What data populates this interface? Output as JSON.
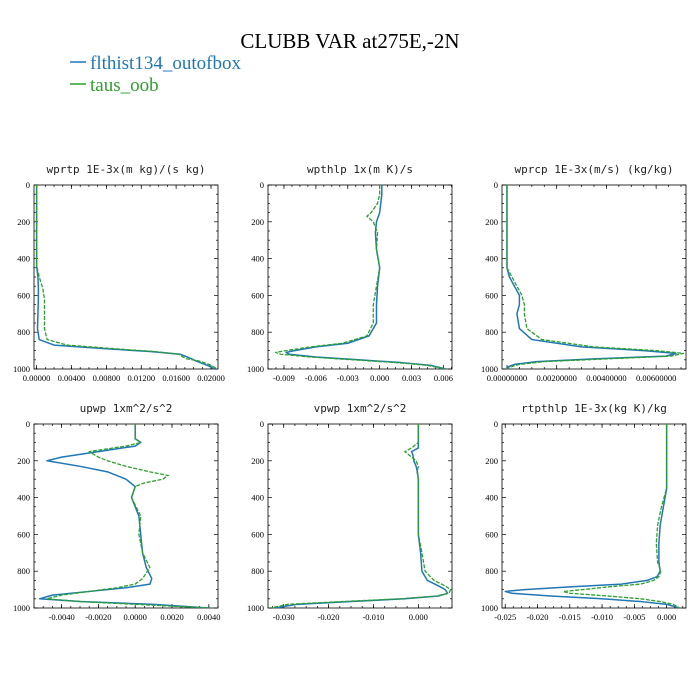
{
  "chart_data": {
    "title": "CLUBB VAR at275E,-2N",
    "series_legend": [
      {
        "name": "flthist134_outofbox",
        "color": "#1f77b4"
      },
      {
        "name": "taus_oob",
        "color": "#2ca02c"
      }
    ],
    "panels": [
      {
        "type": "line",
        "title": "wprtp  1E-3x(m kg)/(s kg)",
        "xlim": [
          -0.0003,
          0.0208
        ],
        "ylim": [
          1000,
          0
        ],
        "x_ticks": [
          0.0,
          0.004,
          0.008,
          0.012,
          0.016,
          0.02
        ],
        "x_tick_labels": [
          "0.00000",
          "0.00400",
          "0.00800",
          "0.01200",
          "0.01600",
          "0.02000"
        ],
        "y_ticks": [
          0,
          200,
          400,
          600,
          800,
          1000
        ],
        "series": [
          {
            "y": [
              0,
              100,
              200,
              300,
              400,
              440,
              500,
              560,
              620,
              700,
              780,
              840,
              870,
              890,
              905,
              920,
              935,
              945,
              955,
              970,
              985,
              1000
            ],
            "x": [
              0.0,
              0.0,
              0.0,
              0.0,
              0.0,
              0.0,
              0.00015,
              0.0002,
              0.0002,
              0.00015,
              0.0001,
              0.0003,
              0.002,
              0.008,
              0.013,
              0.0165,
              0.0173,
              0.0178,
              0.0182,
              0.019,
              0.0198,
              0.0204
            ]
          },
          {
            "y": [
              0,
              100,
              200,
              300,
              400,
              440,
              500,
              560,
              620,
              700,
              780,
              840,
              870,
              890,
              905,
              920,
              935,
              945,
              955,
              970,
              985,
              1000
            ],
            "x": [
              0.0,
              0.0,
              0.0,
              0.0,
              0.0,
              0.0,
              0.0003,
              0.0007,
              0.0009,
              0.0009,
              0.0009,
              0.0012,
              0.0035,
              0.009,
              0.0135,
              0.0163,
              0.0168,
              0.0172,
              0.0185,
              0.0195,
              0.0202,
              0.0207
            ]
          }
        ]
      },
      {
        "type": "line",
        "title": "wpthlp  1x(m K)/s",
        "xlim": [
          -0.0105,
          0.0068
        ],
        "ylim": [
          1000,
          0
        ],
        "x_ticks": [
          -0.009,
          -0.006,
          -0.003,
          0.0,
          0.003,
          0.006
        ],
        "x_tick_labels": [
          "-0.009",
          "-0.006",
          "-0.003",
          "0.000",
          "0.003",
          "0.006"
        ],
        "y_ticks": [
          0,
          200,
          400,
          600,
          800,
          1000
        ],
        "series": [
          {
            "y": [
              0,
              50,
              100,
              150,
              200,
              260,
              350,
              450,
              550,
              650,
              750,
              820,
              860,
              880,
              900,
              910,
              920,
              935,
              950,
              965,
              980,
              1000
            ],
            "x": [
              0.0002,
              0.0002,
              0.0001,
              0.0,
              -0.0003,
              -0.0004,
              -0.0003,
              0.0,
              -0.0002,
              -0.0003,
              -0.0003,
              -0.001,
              -0.003,
              -0.006,
              -0.008,
              -0.0088,
              -0.0085,
              -0.006,
              -0.002,
              0.002,
              0.0048,
              0.0062
            ]
          },
          {
            "y": [
              0,
              50,
              100,
              150,
              170,
              200,
              260,
              350,
              450,
              550,
              650,
              750,
              820,
              860,
              880,
              900,
              910,
              920,
              935,
              950,
              965,
              980,
              1000
            ],
            "x": [
              0.0,
              0.0,
              -0.0002,
              -0.0008,
              -0.0012,
              -0.0006,
              -0.0002,
              -0.0003,
              0.0,
              -0.0003,
              -0.0006,
              -0.0006,
              -0.0012,
              -0.0035,
              -0.0065,
              -0.0088,
              -0.0098,
              -0.0093,
              -0.0065,
              -0.0025,
              0.0015,
              0.0045,
              0.0062
            ]
          }
        ]
      },
      {
        "type": "line",
        "title": "wprcp  1E-3x(m/s) (kg/kg)",
        "xlim": [
          -0.0002,
          0.0072
        ],
        "ylim": [
          1000,
          0
        ],
        "x_ticks": [
          0.0,
          0.002,
          0.004,
          0.006
        ],
        "x_tick_labels": [
          "0.00000000",
          "0.00200000",
          "0.00400000",
          "0.00600000"
        ],
        "y_ticks": [
          0,
          200,
          400,
          600,
          800,
          1000
        ],
        "series": [
          {
            "y": [
              0,
              100,
              200,
              300,
              400,
              450,
              500,
              550,
              600,
              650,
              700,
              780,
              840,
              880,
              900,
              915,
              930,
              945,
              960,
              975,
              990,
              1000
            ],
            "x": [
              0.0,
              0.0,
              0.0,
              0.0,
              0.0,
              0.0,
              0.0001,
              0.0003,
              0.0005,
              0.0005,
              0.0004,
              0.0005,
              0.001,
              0.003,
              0.0055,
              0.0068,
              0.0064,
              0.0035,
              0.0012,
              0.0003,
              0.0,
              0.0
            ]
          },
          {
            "y": [
              0,
              100,
              200,
              300,
              400,
              450,
              500,
              550,
              600,
              650,
              700,
              780,
              840,
              880,
              900,
              915,
              930,
              945,
              960,
              975,
              990,
              1000
            ],
            "x": [
              0.0,
              0.0,
              0.0,
              0.0,
              0.0,
              0.0,
              0.0002,
              0.0004,
              0.0006,
              0.0007,
              0.0007,
              0.0008,
              0.0014,
              0.0035,
              0.006,
              0.0071,
              0.0066,
              0.004,
              0.0015,
              0.0005,
              0.0001,
              0.0
            ]
          }
        ]
      },
      {
        "type": "line",
        "title": "upwp  1xm^2/s^2",
        "xlim": [
          -0.0055,
          0.0045
        ],
        "ylim": [
          1000,
          0
        ],
        "x_ticks": [
          -0.004,
          -0.002,
          0.0,
          0.002,
          0.004
        ],
        "x_tick_labels": [
          "-0.0040",
          "-0.0020",
          "0.0000",
          "0.0020",
          "0.0040"
        ],
        "y_ticks": [
          0,
          200,
          400,
          600,
          800,
          1000
        ],
        "series": [
          {
            "y": [
              0,
              80,
              100,
              120,
              150,
              180,
              200,
              230,
              260,
              300,
              340,
              400,
              500,
              600,
              700,
              780,
              840,
              870,
              890,
              910,
              930,
              950,
              965,
              980,
              1000
            ],
            "x": [
              0.0,
              0.0,
              0.0003,
              0.0,
              -0.002,
              -0.004,
              -0.0048,
              -0.003,
              -0.0015,
              -0.0005,
              0.0,
              -0.0002,
              0.0002,
              0.0003,
              0.0004,
              0.0006,
              0.0009,
              0.0008,
              -0.0005,
              -0.0025,
              -0.0045,
              -0.0052,
              -0.003,
              0.001,
              0.004
            ]
          },
          {
            "y": [
              0,
              80,
              100,
              120,
              150,
              180,
              200,
              230,
              260,
              280,
              300,
              320,
              340,
              400,
              500,
              600,
              700,
              780,
              840,
              870,
              890,
              910,
              930,
              950,
              965,
              980,
              1000
            ],
            "x": [
              0.0,
              0.0,
              0.0003,
              -0.0005,
              -0.0025,
              -0.002,
              -0.0015,
              -0.0005,
              0.0008,
              0.0018,
              0.0015,
              0.0005,
              0.0,
              -0.0002,
              0.0003,
              0.0002,
              0.0004,
              0.0008,
              0.0004,
              0.0,
              -0.001,
              -0.0025,
              -0.004,
              -0.0048,
              -0.003,
              0.0,
              0.004
            ]
          }
        ]
      },
      {
        "type": "line",
        "title": "vpwp  1xm^2/s^2",
        "xlim": [
          -0.0335,
          0.0075
        ],
        "ylim": [
          1000,
          0
        ],
        "x_ticks": [
          -0.03,
          -0.02,
          -0.01,
          0.0
        ],
        "x_tick_labels": [
          "-0.030",
          "-0.020",
          "-0.010",
          "0.000"
        ],
        "y_ticks": [
          0,
          200,
          400,
          600,
          800,
          1000
        ],
        "series": [
          {
            "y": [
              0,
              100,
              130,
              150,
              170,
              200,
              230,
              260,
              300,
              400,
              500,
              600,
              700,
              800,
              850,
              880,
              900,
              920,
              935,
              950,
              965,
              980,
              1000
            ],
            "x": [
              0.0,
              0.0,
              0.0,
              -0.0015,
              -0.0012,
              -0.001,
              -0.0005,
              -0.0002,
              0.0,
              0.0,
              0.0,
              0.0,
              0.0005,
              0.0008,
              0.002,
              0.0045,
              0.006,
              0.0065,
              0.0045,
              -0.003,
              -0.015,
              -0.027,
              -0.032
            ]
          },
          {
            "y": [
              0,
              100,
              130,
              150,
              170,
              200,
              230,
              260,
              300,
              400,
              500,
              600,
              700,
              800,
              850,
              880,
              900,
              920,
              935,
              950,
              965,
              980,
              1000
            ],
            "x": [
              0.0,
              0.0,
              -0.0015,
              -0.003,
              -0.002,
              -0.0005,
              0.0,
              -0.0003,
              0.0,
              0.0,
              0.0,
              0.0,
              0.0008,
              0.0015,
              0.0035,
              0.006,
              0.0072,
              0.0068,
              0.004,
              -0.004,
              -0.017,
              -0.029,
              -0.033
            ]
          }
        ]
      },
      {
        "type": "line",
        "title": "rtpthlp  1E-3x(kg K)/kg",
        "xlim": [
          -0.0255,
          0.003
        ],
        "ylim": [
          1000,
          0
        ],
        "x_ticks": [
          -0.025,
          -0.02,
          -0.015,
          -0.01,
          -0.005,
          0.0
        ],
        "x_tick_labels": [
          "-0.025",
          "-0.020",
          "-0.015",
          "-0.010",
          "-0.005",
          "0.000"
        ],
        "y_ticks": [
          0,
          200,
          400,
          600,
          800,
          1000
        ],
        "series": [
          {
            "y": [
              0,
              200,
              350,
              450,
              550,
              650,
              750,
              800,
              830,
              850,
              870,
              885,
              900,
              910,
              920,
              935,
              950,
              965,
              980,
              1000
            ],
            "x": [
              0.0,
              0.0,
              0.0,
              -0.0005,
              -0.001,
              -0.0012,
              -0.0012,
              -0.001,
              -0.0015,
              -0.003,
              -0.007,
              -0.015,
              -0.022,
              -0.025,
              -0.024,
              -0.018,
              -0.01,
              -0.004,
              0.0,
              0.002
            ]
          },
          {
            "y": [
              0,
              200,
              350,
              450,
              550,
              650,
              750,
              800,
              830,
              850,
              870,
              885,
              900,
              910,
              920,
              935,
              950,
              965,
              980,
              1000
            ],
            "x": [
              0.0,
              0.0,
              0.0,
              -0.0008,
              -0.0014,
              -0.0016,
              -0.0014,
              -0.0009,
              -0.0012,
              -0.002,
              -0.004,
              -0.009,
              -0.013,
              -0.016,
              -0.015,
              -0.009,
              -0.004,
              -0.001,
              0.001,
              0.002
            ]
          }
        ]
      }
    ]
  }
}
